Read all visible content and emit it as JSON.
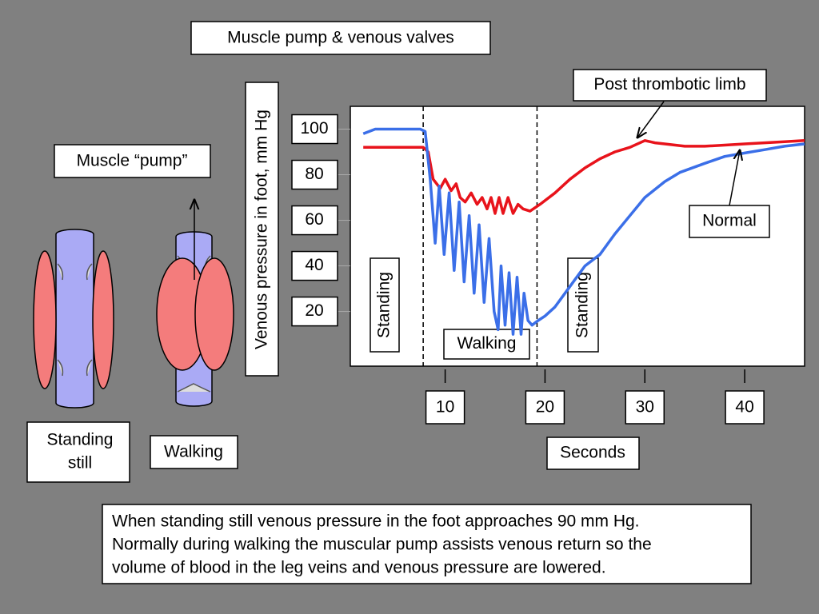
{
  "chart_data": {
    "type": "line",
    "title": "Muscle pump & venous valves",
    "y_label": "Venous pressure in foot, mm Hg",
    "x_label": "Seconds",
    "xlim": [
      0.5,
      46
    ],
    "xticks": [
      10,
      20,
      30,
      40
    ],
    "ylim": [
      -4,
      110
    ],
    "yticks": [
      20,
      40,
      60,
      80,
      100
    ],
    "phase_lines": [
      7.8,
      19.2
    ],
    "annotations": [
      "Standing",
      "Walking",
      "Standing"
    ],
    "series": [
      {
        "name": "Post thrombotic limb",
        "color": "#e8131b",
        "x": [
          1.8,
          4,
          7.8,
          8.3,
          8.8,
          9.5,
          10.0,
          10.6,
          11.1,
          11.5,
          12.0,
          12.6,
          13.2,
          13.7,
          14.2,
          14.6,
          15.0,
          15.4,
          15.8,
          16.3,
          16.8,
          17.3,
          17.8,
          18.5,
          19.5,
          21,
          22.5,
          24,
          25.5,
          27,
          28.5,
          30,
          31,
          32,
          34,
          36,
          38,
          40,
          42,
          44,
          46
        ],
        "values": [
          92,
          92,
          92,
          90,
          78,
          74,
          78,
          73,
          76,
          70,
          68,
          72,
          67,
          70,
          65,
          70,
          63,
          70,
          63,
          70,
          63,
          67,
          65,
          64,
          67,
          72,
          78,
          83,
          87,
          90,
          92,
          95,
          94,
          93.5,
          92.5,
          92.5,
          93,
          93.5,
          94,
          94.5,
          95
        ]
      },
      {
        "name": "Normal",
        "color": "#3b6fe8",
        "x": [
          1.8,
          3,
          7.5,
          8,
          8.5,
          9.0,
          9.4,
          9.9,
          10.4,
          10.9,
          11.4,
          11.9,
          12.4,
          12.9,
          13.4,
          13.9,
          14.4,
          14.9,
          15.3,
          15.6,
          16.0,
          16.4,
          16.8,
          17.2,
          17.6,
          17.9,
          18.3,
          18.7,
          19.3,
          20,
          21,
          22,
          23,
          24,
          25.5,
          27,
          28.5,
          30,
          32,
          33.5,
          36,
          38,
          40,
          42,
          44,
          46
        ],
        "values": [
          98,
          100,
          100,
          99,
          78,
          50,
          75,
          45,
          72,
          38,
          68,
          33,
          62,
          28,
          58,
          24,
          52,
          20,
          12,
          40,
          14,
          37,
          10,
          35,
          10,
          28,
          16,
          14,
          16,
          18,
          22,
          28,
          34,
          40,
          45,
          54,
          62,
          70,
          77,
          81,
          85,
          88,
          89.5,
          91,
          92.5,
          93.5
        ]
      }
    ]
  },
  "slide": {
    "muscle_label": "Muscle “pump”",
    "standing_label": [
      "Standing",
      "still"
    ],
    "walking_label": "Walking",
    "caption": [
      "When standing still venous pressure in the foot approaches 90 mm Hg.",
      "Normally during walking the muscular pump assists venous return so the",
      "volume of blood in the leg veins and venous pressure are lowered."
    ]
  }
}
